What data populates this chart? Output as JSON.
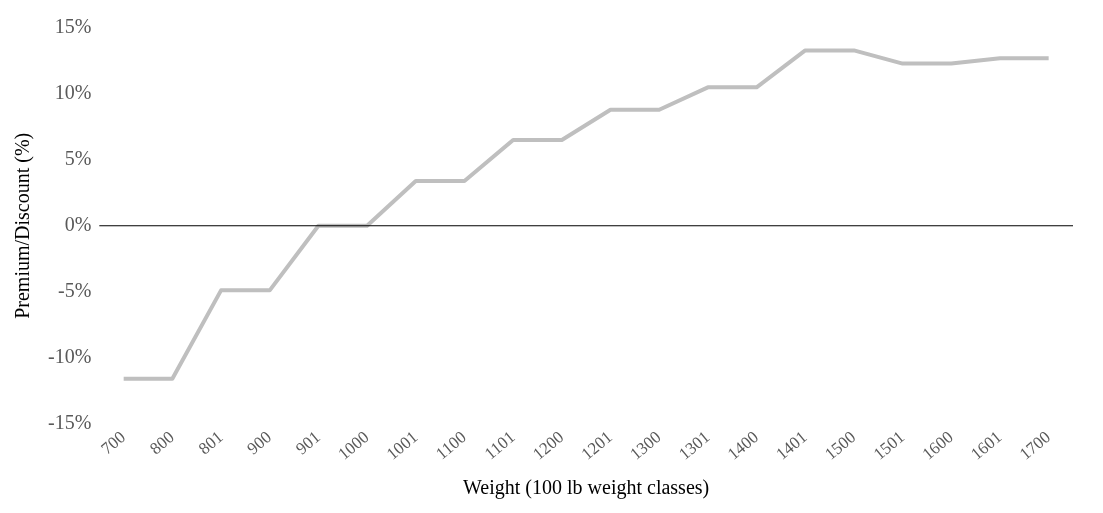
{
  "chart_data": {
    "type": "line",
    "xlabel": "Weight (100 lb weight classes)",
    "ylabel": "Premium/Discount (%)",
    "categories": [
      "700",
      "800",
      "801",
      "900",
      "901",
      "1000",
      "1001",
      "1100",
      "1101",
      "1200",
      "1201",
      "1300",
      "1301",
      "1400",
      "1401",
      "1500",
      "1501",
      "1600",
      "1601",
      "1700"
    ],
    "series": [
      {
        "color": "#bfbfbf",
        "values": [
          -11.6,
          -11.6,
          -4.9,
          -4.9,
          0,
          0,
          3.4,
          3.4,
          6.5,
          6.5,
          8.8,
          8.8,
          10.5,
          10.5,
          13.3,
          13.3,
          12.3,
          12.3,
          12.7,
          12.7
        ]
      }
    ],
    "ylim": [
      -15,
      15
    ],
    "yticks": [
      {
        "value": -15,
        "label": "-15%"
      },
      {
        "value": -10,
        "label": "-10%"
      },
      {
        "value": -5,
        "label": "-5%"
      },
      {
        "value": 0,
        "label": "0%"
      },
      {
        "value": 5,
        "label": "5%"
      },
      {
        "value": 10,
        "label": "10%"
      },
      {
        "value": 15,
        "label": "15%"
      }
    ],
    "ref_lines": [
      {
        "axis": "y",
        "value": 0,
        "color": "#000000"
      }
    ],
    "grid": false,
    "legend": false,
    "marker": "none",
    "line_style": "solid"
  }
}
